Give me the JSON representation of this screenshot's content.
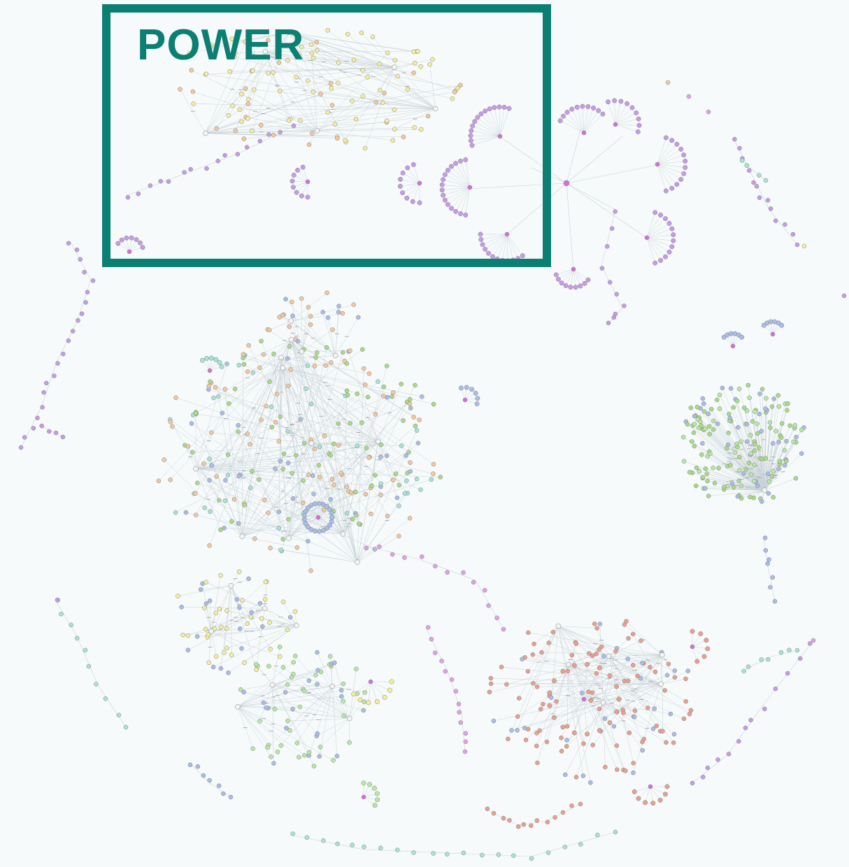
{
  "callout": {
    "label": "POWER",
    "color": "#0b7f72"
  },
  "palette": {
    "background": "#f6fafb",
    "edge": "#c9d2d6",
    "node_stroke": "#7d7d7d",
    "hub_fill": "#d56fd9",
    "purple": "#c79be8",
    "yellow": "#f6ee9a",
    "orange": "#f6c79c",
    "green": "#a9dc86",
    "lightgreen": "#b7e8a4",
    "blue": "#a9bde8",
    "teal": "#a6e4d6",
    "salmon": "#ec9f8d",
    "white": "#f4f4f4",
    "magenta": "#e3a0e8"
  }
}
